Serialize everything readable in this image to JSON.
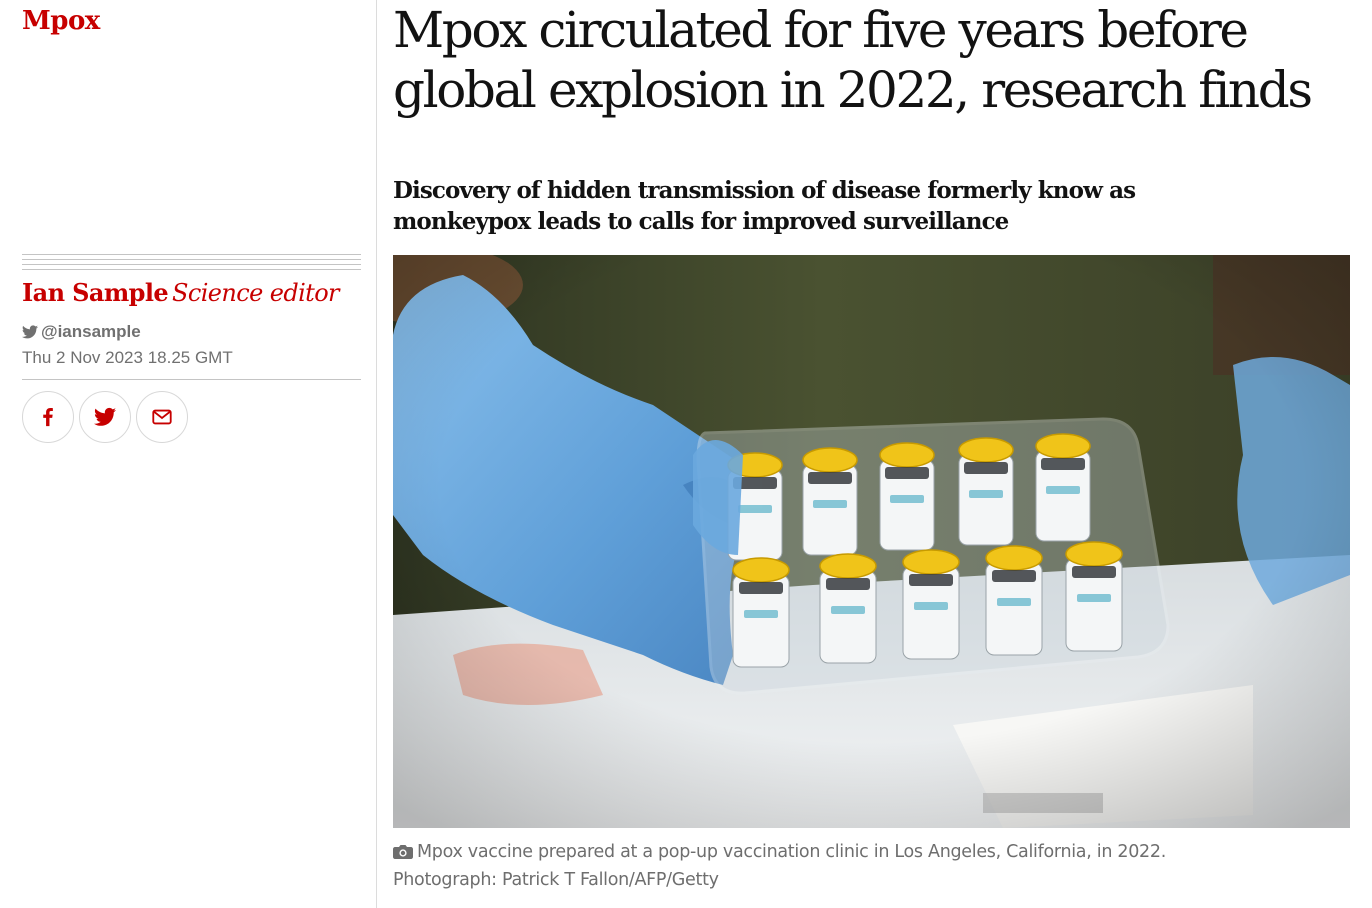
{
  "article": {
    "section": "Mpox",
    "headline": "Mpox circulated for five years before global explosion in 2022, research finds",
    "standfirst": "Discovery of hidden transmission of disease formerly know as monkeypox leads to calls for improved surveillance",
    "byline": {
      "name": "Ian Sample",
      "role": "Science editor",
      "twitter": "@iansample"
    },
    "date": "Thu 2 Nov 2023 18.25 GMT",
    "share": [
      {
        "network": "facebook",
        "icon": "facebook-icon"
      },
      {
        "network": "twitter",
        "icon": "twitter-icon"
      },
      {
        "network": "email",
        "icon": "email-icon"
      }
    ],
    "image": {
      "caption": "Mpox vaccine prepared at a pop-up vaccination clinic in Los Angeles, California, in 2022.",
      "credit": "Photograph: Patrick T Fallon/AFP/Getty"
    }
  },
  "colors": {
    "accent": "#c70000",
    "text": "#121212",
    "muted": "#707070",
    "rule": "#c4c4c4"
  }
}
